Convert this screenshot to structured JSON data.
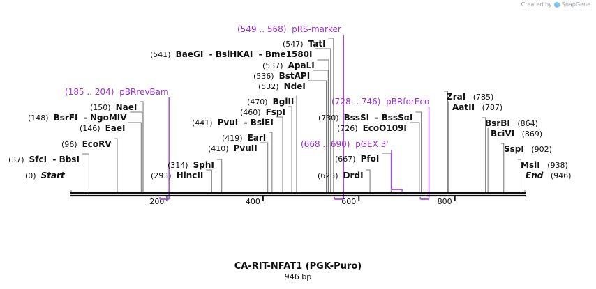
{
  "credit": {
    "prefix": "Created by",
    "brand": "SnapGene"
  },
  "title": "CA-RIT-NFAT1 (PGK-Puro)",
  "length_label": "946 bp",
  "sequence": {
    "length": 946
  },
  "ruler": {
    "ticks": [
      200,
      400,
      600,
      800
    ]
  },
  "sites": [
    {
      "id": "start",
      "parts": [
        {
          "pos": "(0)",
          "name": "Start",
          "bp": 0
        }
      ],
      "special": true
    },
    {
      "id": "sfci",
      "parts": [
        {
          "pos": "(37)",
          "name": "SfcI",
          "bp": 37
        },
        {
          "name": "BbsI",
          "bp": 37
        }
      ]
    },
    {
      "id": "ecorv",
      "parts": [
        {
          "pos": "(96)",
          "name": "EcoRV",
          "bp": 96
        }
      ]
    },
    {
      "id": "eaei",
      "parts": [
        {
          "pos": "(146)",
          "name": "EaeI",
          "bp": 146
        }
      ]
    },
    {
      "id": "bsrfi",
      "parts": [
        {
          "pos": "(148)",
          "name": "BsrFI",
          "bp": 148
        },
        {
          "name": "NgoMIV",
          "bp": 148
        }
      ]
    },
    {
      "id": "naei",
      "parts": [
        {
          "pos": "(150)",
          "name": "NaeI",
          "bp": 150
        }
      ]
    },
    {
      "id": "hincii",
      "parts": [
        {
          "pos": "(293)",
          "name": "HincII",
          "bp": 293
        }
      ]
    },
    {
      "id": "sphi",
      "parts": [
        {
          "pos": "(314)",
          "name": "SphI",
          "bp": 314
        }
      ]
    },
    {
      "id": "pvuii",
      "parts": [
        {
          "pos": "(410)",
          "name": "PvuII",
          "bp": 410
        }
      ]
    },
    {
      "id": "eari",
      "parts": [
        {
          "pos": "(419)",
          "name": "EarI",
          "bp": 419
        }
      ]
    },
    {
      "id": "pvui",
      "parts": [
        {
          "pos": "(441)",
          "name": "PvuI",
          "bp": 441
        },
        {
          "name": "BsiEI",
          "bp": 441
        }
      ]
    },
    {
      "id": "fspi",
      "parts": [
        {
          "pos": "(460)",
          "name": "FspI",
          "bp": 460
        }
      ]
    },
    {
      "id": "bglii",
      "parts": [
        {
          "pos": "(470)",
          "name": "BglII",
          "bp": 470
        }
      ]
    },
    {
      "id": "ndei",
      "parts": [
        {
          "pos": "(532)",
          "name": "NdeI",
          "bp": 532
        }
      ]
    },
    {
      "id": "bstapi",
      "parts": [
        {
          "pos": "(536)",
          "name": "BstAPI",
          "bp": 536
        }
      ]
    },
    {
      "id": "apali",
      "parts": [
        {
          "pos": "(537)",
          "name": "ApaLI",
          "bp": 537
        }
      ]
    },
    {
      "id": "baegi",
      "parts": [
        {
          "pos": "(541)",
          "name": "BaeGI",
          "bp": 541
        },
        {
          "name": "BsiHKAI",
          "bp": 541
        },
        {
          "name": "Bme1580I",
          "bp": 541
        }
      ]
    },
    {
      "id": "tati",
      "parts": [
        {
          "pos": "(547)",
          "name": "TatI",
          "bp": 547
        }
      ]
    },
    {
      "id": "drdi",
      "parts": [
        {
          "pos": "(623)",
          "name": "DrdI",
          "bp": 623
        }
      ]
    },
    {
      "id": "pfoi",
      "parts": [
        {
          "pos": "(667)",
          "name": "PfoI",
          "bp": 667
        }
      ]
    },
    {
      "id": "ecoo109i",
      "parts": [
        {
          "pos": "(726)",
          "name": "EcoO109I",
          "bp": 726
        }
      ]
    },
    {
      "id": "bsssi",
      "parts": [
        {
          "pos": "(730)",
          "name": "BssSI",
          "bp": 730
        },
        {
          "name": "BssSαI",
          "bp": 730
        }
      ]
    },
    {
      "id": "zrai",
      "parts": [
        {
          "name": "ZraI",
          "pos": "(785)",
          "bp": 785
        }
      ]
    },
    {
      "id": "aatii",
      "parts": [
        {
          "name": "AatII",
          "pos": "(787)",
          "bp": 787
        }
      ]
    },
    {
      "id": "bsrbi",
      "parts": [
        {
          "name": "BsrBI",
          "pos": "(864)",
          "bp": 864
        }
      ]
    },
    {
      "id": "bcivi",
      "parts": [
        {
          "name": "BciVI",
          "pos": "(869)",
          "bp": 869
        }
      ]
    },
    {
      "id": "sspi",
      "parts": [
        {
          "name": "SspI",
          "pos": "(902)",
          "bp": 902
        }
      ]
    },
    {
      "id": "msli",
      "parts": [
        {
          "name": "MslI",
          "pos": "(938)",
          "bp": 938
        }
      ]
    },
    {
      "id": "end",
      "parts": [
        {
          "name": "End",
          "pos": "(946)",
          "bp": 946
        }
      ],
      "special": true
    }
  ],
  "primers": [
    {
      "id": "pbrrevbam",
      "range": "(185 .. 204)",
      "name": "pBRrevBam",
      "start": 185,
      "end": 204,
      "strand": "bottom"
    },
    {
      "id": "prs-marker",
      "range": "(549 .. 568)",
      "name": "pRS-marker",
      "start": 549,
      "end": 568,
      "strand": "bottom"
    },
    {
      "id": "pgex3",
      "range": "(668 .. 690)",
      "name": "pGEX 3'",
      "start": 668,
      "end": 690,
      "strand": "top"
    },
    {
      "id": "pbrforeco",
      "range": "(728 .. 746)",
      "name": "pBRforEco",
      "start": 728,
      "end": 746,
      "strand": "bottom"
    }
  ],
  "colors": {
    "primer": "#a64de0",
    "sequence": "#111111",
    "leader": "#777777",
    "credit_logo": "#7ec4f0"
  }
}
